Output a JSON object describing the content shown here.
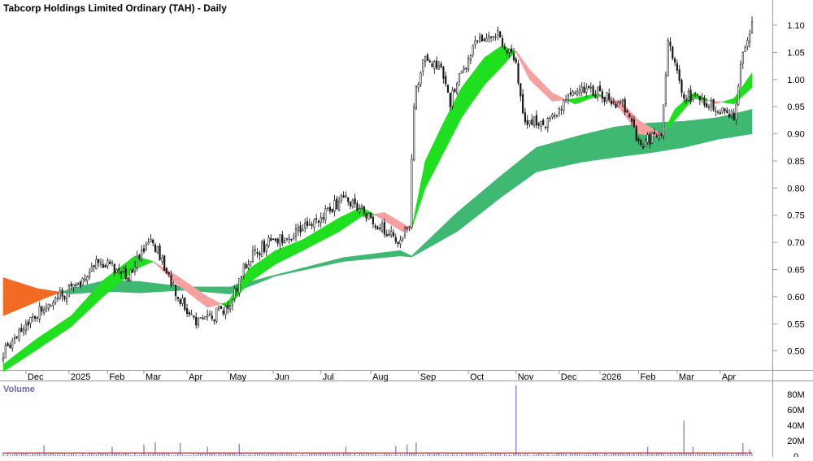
{
  "colors": {
    "background": "#ffffff",
    "frame": "#9a9a9a",
    "candle": "#1a1a1a",
    "candle_up_body": "#ffffff",
    "short_up": "#1ee01e",
    "short_down": "#f7a0a0",
    "long_up": "#3fb872",
    "long_down": "#f26b22",
    "volume_bar": "#8080d0",
    "volume_ma": "#e03030",
    "text": "#000000",
    "volume_title": "#6a6ab4"
  },
  "chart_data": [
    {
      "type": "candlestick",
      "title": "Tabcorp Holdings Limited Ordinary (TAH) - Daily",
      "ylim": [
        0.465,
        1.145
      ],
      "y_ticks": [
        0.5,
        0.55,
        0.6,
        0.65,
        0.7,
        0.75,
        0.8,
        0.85,
        0.9,
        0.95,
        1.0,
        1.05,
        1.1
      ],
      "y_tick_labels": [
        "0.50",
        "0.55",
        "0.60",
        "0.65",
        "0.70",
        "0.75",
        "0.80",
        "0.85",
        "0.90",
        "0.95",
        "1.00",
        "1.05",
        "1.10"
      ],
      "x_tick_labels": [
        "Dec",
        "2025",
        "Feb",
        "Mar",
        "Apr",
        "May",
        "Jun",
        "Jul",
        "Aug",
        "Sep",
        "Oct",
        "Nov",
        "Dec",
        "2026",
        "Feb",
        "Mar",
        "Apr"
      ],
      "x_tick_index": [
        10,
        29,
        46,
        62,
        81,
        99,
        119,
        140,
        162,
        183,
        205,
        226,
        245,
        263,
        280,
        297,
        316
      ],
      "n_bars": 331,
      "close_keypoints": [
        [
          0,
          0.495
        ],
        [
          12,
          0.56
        ],
        [
          25,
          0.6
        ],
        [
          35,
          0.625
        ],
        [
          42,
          0.67
        ],
        [
          55,
          0.635
        ],
        [
          65,
          0.71
        ],
        [
          74,
          0.625
        ],
        [
          85,
          0.55
        ],
        [
          93,
          0.565
        ],
        [
          100,
          0.59
        ],
        [
          108,
          0.67
        ],
        [
          117,
          0.7
        ],
        [
          130,
          0.72
        ],
        [
          138,
          0.745
        ],
        [
          150,
          0.78
        ],
        [
          158,
          0.76
        ],
        [
          166,
          0.73
        ],
        [
          175,
          0.7
        ],
        [
          179,
          0.74
        ],
        [
          181,
          0.96
        ],
        [
          185,
          1.04
        ],
        [
          192,
          1.03
        ],
        [
          197,
          0.96
        ],
        [
          208,
          1.07
        ],
        [
          218,
          1.08
        ],
        [
          226,
          1.03
        ],
        [
          230,
          0.92
        ],
        [
          240,
          0.92
        ],
        [
          254,
          0.99
        ],
        [
          264,
          0.97
        ],
        [
          274,
          0.95
        ],
        [
          280,
          0.88
        ],
        [
          290,
          0.9
        ],
        [
          293,
          1.07
        ],
        [
          300,
          0.97
        ],
        [
          306,
          0.97
        ],
        [
          314,
          0.95
        ],
        [
          322,
          0.935
        ],
        [
          326,
          1.05
        ],
        [
          330,
          1.1
        ]
      ],
      "short_band": {
        "fast": [
          [
            0,
            0.475
          ],
          [
            14,
            0.52
          ],
          [
            30,
            0.565
          ],
          [
            44,
            0.63
          ],
          [
            58,
            0.675
          ],
          [
            66,
            0.665
          ],
          [
            76,
            0.625
          ],
          [
            90,
            0.58
          ],
          [
            99,
            0.59
          ],
          [
            108,
            0.65
          ],
          [
            120,
            0.685
          ],
          [
            132,
            0.705
          ],
          [
            148,
            0.745
          ],
          [
            158,
            0.765
          ],
          [
            168,
            0.74
          ],
          [
            176,
            0.72
          ],
          [
            180,
            0.725
          ],
          [
            186,
            0.85
          ],
          [
            194,
            0.92
          ],
          [
            202,
            0.985
          ],
          [
            212,
            1.04
          ],
          [
            220,
            1.063
          ],
          [
            226,
            1.05
          ],
          [
            232,
            1.0
          ],
          [
            242,
            0.96
          ],
          [
            252,
            0.965
          ],
          [
            262,
            0.975
          ],
          [
            272,
            0.945
          ],
          [
            280,
            0.9
          ],
          [
            290,
            0.895
          ],
          [
            296,
            0.945
          ],
          [
            304,
            0.975
          ],
          [
            314,
            0.955
          ],
          [
            322,
            0.965
          ],
          [
            330,
            1.012
          ]
        ],
        "slow": [
          [
            0,
            0.462
          ],
          [
            14,
            0.5
          ],
          [
            30,
            0.545
          ],
          [
            44,
            0.6
          ],
          [
            58,
            0.65
          ],
          [
            66,
            0.665
          ],
          [
            76,
            0.64
          ],
          [
            90,
            0.6
          ],
          [
            99,
            0.58
          ],
          [
            108,
            0.625
          ],
          [
            120,
            0.66
          ],
          [
            132,
            0.685
          ],
          [
            148,
            0.72
          ],
          [
            158,
            0.748
          ],
          [
            168,
            0.755
          ],
          [
            176,
            0.735
          ],
          [
            180,
            0.725
          ],
          [
            186,
            0.8
          ],
          [
            194,
            0.865
          ],
          [
            202,
            0.93
          ],
          [
            212,
            0.99
          ],
          [
            220,
            1.025
          ],
          [
            226,
            1.053
          ],
          [
            232,
            1.018
          ],
          [
            242,
            0.975
          ],
          [
            252,
            0.955
          ],
          [
            262,
            0.97
          ],
          [
            272,
            0.96
          ],
          [
            280,
            0.925
          ],
          [
            290,
            0.9
          ],
          [
            296,
            0.925
          ],
          [
            304,
            0.965
          ],
          [
            314,
            0.96
          ],
          [
            322,
            0.955
          ],
          [
            330,
            0.985
          ]
        ]
      },
      "long_band": {
        "fast": [
          [
            0,
            0.565
          ],
          [
            20,
            0.6
          ],
          [
            30,
            0.615
          ],
          [
            45,
            0.63
          ],
          [
            60,
            0.628
          ],
          [
            80,
            0.618
          ],
          [
            100,
            0.618
          ],
          [
            120,
            0.64
          ],
          [
            150,
            0.672
          ],
          [
            175,
            0.685
          ],
          [
            180,
            0.675
          ],
          [
            200,
            0.755
          ],
          [
            220,
            0.825
          ],
          [
            235,
            0.875
          ],
          [
            255,
            0.898
          ],
          [
            270,
            0.913
          ],
          [
            285,
            0.92
          ],
          [
            300,
            0.923
          ],
          [
            315,
            0.93
          ],
          [
            330,
            0.945
          ]
        ],
        "slow": [
          [
            0,
            0.635
          ],
          [
            15,
            0.615
          ],
          [
            30,
            0.605
          ],
          [
            45,
            0.61
          ],
          [
            60,
            0.607
          ],
          [
            80,
            0.612
          ],
          [
            100,
            0.605
          ],
          [
            120,
            0.638
          ],
          [
            150,
            0.665
          ],
          [
            175,
            0.675
          ],
          [
            180,
            0.673
          ],
          [
            200,
            0.72
          ],
          [
            220,
            0.785
          ],
          [
            235,
            0.83
          ],
          [
            255,
            0.848
          ],
          [
            270,
            0.857
          ],
          [
            285,
            0.865
          ],
          [
            300,
            0.875
          ],
          [
            315,
            0.89
          ],
          [
            330,
            0.9
          ]
        ]
      }
    },
    {
      "type": "bar",
      "title": "Volume",
      "ylim": [
        0,
        96000000
      ],
      "y_ticks": [
        0,
        20000000,
        40000000,
        60000000,
        80000000
      ],
      "y_tick_labels": [
        "0",
        "20M",
        "40M",
        "60M",
        "80M"
      ],
      "base_volume": 5000000,
      "ma_level": 4000000,
      "spikes": [
        [
          18,
          14000000
        ],
        [
          48,
          12000000
        ],
        [
          62,
          15000000
        ],
        [
          67,
          18000000
        ],
        [
          78,
          17000000
        ],
        [
          90,
          12000000
        ],
        [
          104,
          16000000
        ],
        [
          151,
          12000000
        ],
        [
          173,
          13000000
        ],
        [
          178,
          15000000
        ],
        [
          182,
          18000000
        ],
        [
          226,
          92000000
        ],
        [
          284,
          12000000
        ],
        [
          300,
          46000000
        ],
        [
          304,
          12000000
        ],
        [
          326,
          17000000
        ],
        [
          329,
          9000000
        ]
      ]
    }
  ]
}
